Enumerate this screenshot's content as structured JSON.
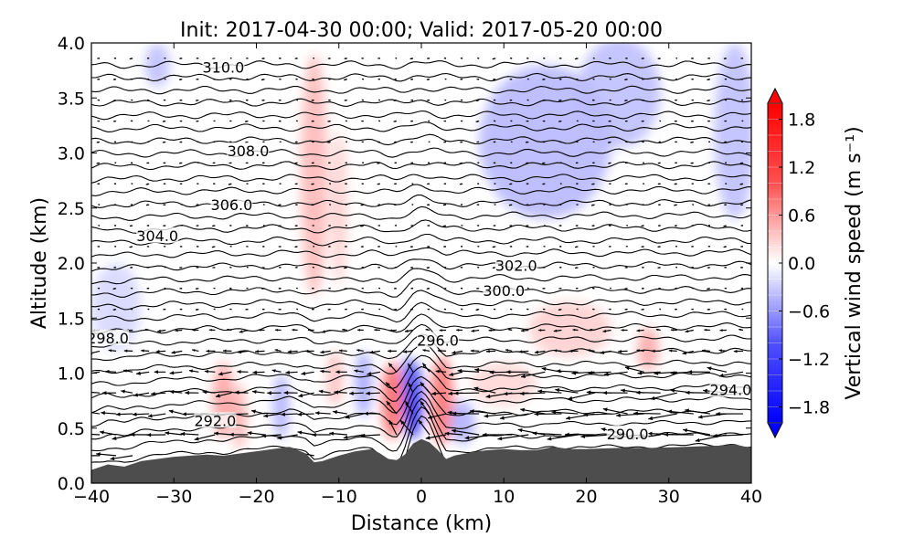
{
  "chart_data": {
    "type": "contour-cross-section",
    "title": "Init: 2017-04-30 00:00; Valid: 2017-05-20 00:00",
    "xlabel": "Distance (km)",
    "ylabel": "Altitude (km)",
    "xlim": [
      -40,
      40
    ],
    "ylim": [
      0.0,
      4.0
    ],
    "xticks": [
      -40,
      -30,
      -20,
      -10,
      0,
      10,
      20,
      30,
      40
    ],
    "xtick_labels": [
      "−40",
      "−30",
      "−20",
      "−10",
      "0",
      "10",
      "20",
      "30",
      "40"
    ],
    "yticks": [
      0.0,
      0.5,
      1.0,
      1.5,
      2.0,
      2.5,
      3.0,
      3.5,
      4.0
    ],
    "ytick_labels": [
      "0.0",
      "0.5",
      "1.0",
      "1.5",
      "2.0",
      "2.5",
      "3.0",
      "3.5",
      "4.0"
    ],
    "colorbar": {
      "label": "Vertical wind speed (m s⁻¹)",
      "min": -2.0,
      "max": 2.0,
      "ticks": [
        1.8,
        1.2,
        0.6,
        0.0,
        -0.6,
        -1.2,
        -1.8
      ],
      "tick_labels": [
        "1.8",
        "1.2",
        "0.6",
        "0.0",
        "−0.6",
        "−1.2",
        "−1.8"
      ],
      "extend": "both",
      "colors": {
        "positive": "#ff0000",
        "negative": "#0000ff",
        "zero": "#ffffff"
      }
    },
    "terrain": {
      "fill_color": "#4d4d4d",
      "x": [
        -40,
        -38,
        -36,
        -34,
        -32,
        -30,
        -28,
        -26,
        -24,
        -22,
        -20,
        -18,
        -16,
        -14,
        -13,
        -12,
        -10,
        -8,
        -6,
        -5,
        -4,
        -3,
        -2,
        -1,
        0,
        1,
        2,
        3,
        4,
        6,
        8,
        10,
        12,
        14,
        16,
        18,
        20,
        24,
        28,
        32,
        36,
        38,
        40
      ],
      "altitude_km": [
        0.12,
        0.17,
        0.15,
        0.2,
        0.22,
        0.24,
        0.25,
        0.26,
        0.25,
        0.27,
        0.29,
        0.31,
        0.33,
        0.27,
        0.19,
        0.2,
        0.25,
        0.29,
        0.31,
        0.27,
        0.22,
        0.21,
        0.26,
        0.36,
        0.4,
        0.37,
        0.3,
        0.22,
        0.25,
        0.28,
        0.3,
        0.31,
        0.3,
        0.3,
        0.33,
        0.31,
        0.31,
        0.32,
        0.32,
        0.33,
        0.34,
        0.35,
        0.32
      ]
    },
    "theta_contour_labels": [
      {
        "text": "310.0",
        "x": -24.0,
        "y": 3.78
      },
      {
        "text": "308.0",
        "x": -21.0,
        "y": 3.02
      },
      {
        "text": "306.0",
        "x": -23.0,
        "y": 2.53
      },
      {
        "text": "304.0",
        "x": -32.0,
        "y": 2.25
      },
      {
        "text": "302.0",
        "x": 11.5,
        "y": 1.98
      },
      {
        "text": "300.0",
        "x": 10.0,
        "y": 1.75
      },
      {
        "text": "298.0",
        "x": -38.0,
        "y": 1.32
      },
      {
        "text": "296.0",
        "x": 2.0,
        "y": 1.3
      },
      {
        "text": "294.0",
        "x": 37.5,
        "y": 0.85
      },
      {
        "text": "292.0",
        "x": -25.0,
        "y": 0.57
      },
      {
        "text": "290.0",
        "x": 25.0,
        "y": 0.45
      }
    ],
    "w_anomalies": [
      {
        "x": -1,
        "y": 0.75,
        "rx": 1.2,
        "ry": 0.35,
        "w": -1.6
      },
      {
        "x": -1.5,
        "y": 0.95,
        "rx": 0.8,
        "ry": 0.2,
        "w": -1.0
      },
      {
        "x": -3.5,
        "y": 0.75,
        "rx": 1.3,
        "ry": 0.35,
        "w": 1.0
      },
      {
        "x": 2.5,
        "y": 0.75,
        "rx": 1.4,
        "ry": 0.4,
        "w": 0.9
      },
      {
        "x": -13,
        "y": 2.8,
        "rx": 1.6,
        "ry": 1.1,
        "w": 0.35
      },
      {
        "x": -10,
        "y": 2.5,
        "rx": 1.0,
        "ry": 0.7,
        "w": 0.2
      },
      {
        "x": -24,
        "y": 0.75,
        "rx": 1.3,
        "ry": 0.35,
        "w": 0.5
      },
      {
        "x": -22,
        "y": 0.6,
        "rx": 0.8,
        "ry": 0.3,
        "w": 0.4
      },
      {
        "x": -17,
        "y": 0.7,
        "rx": 1.0,
        "ry": 0.3,
        "w": -0.4
      },
      {
        "x": -7,
        "y": 0.9,
        "rx": 1.0,
        "ry": 0.3,
        "w": -0.5
      },
      {
        "x": -10.5,
        "y": 0.95,
        "rx": 1.0,
        "ry": 0.25,
        "w": 0.3
      },
      {
        "x": 15,
        "y": 3.1,
        "rx": 8.0,
        "ry": 0.7,
        "w": -0.35
      },
      {
        "x": 24,
        "y": 3.55,
        "rx": 5.0,
        "ry": 0.5,
        "w": -0.3
      },
      {
        "x": 38,
        "y": 3.2,
        "rx": 2.5,
        "ry": 0.8,
        "w": -0.3
      },
      {
        "x": -32,
        "y": 3.8,
        "rx": 1.5,
        "ry": 0.2,
        "w": -0.3
      },
      {
        "x": 27.5,
        "y": 1.22,
        "rx": 1.3,
        "ry": 0.2,
        "w": 0.45
      },
      {
        "x": 5,
        "y": 0.55,
        "rx": 1.5,
        "ry": 0.2,
        "w": -0.4
      },
      {
        "x": 18,
        "y": 1.4,
        "rx": 5.0,
        "ry": 0.25,
        "w": 0.2
      },
      {
        "x": -37,
        "y": 1.6,
        "rx": 3.0,
        "ry": 0.4,
        "w": -0.15
      },
      {
        "x": 10,
        "y": 0.9,
        "rx": 4.0,
        "ry": 0.2,
        "w": 0.15
      }
    ]
  }
}
